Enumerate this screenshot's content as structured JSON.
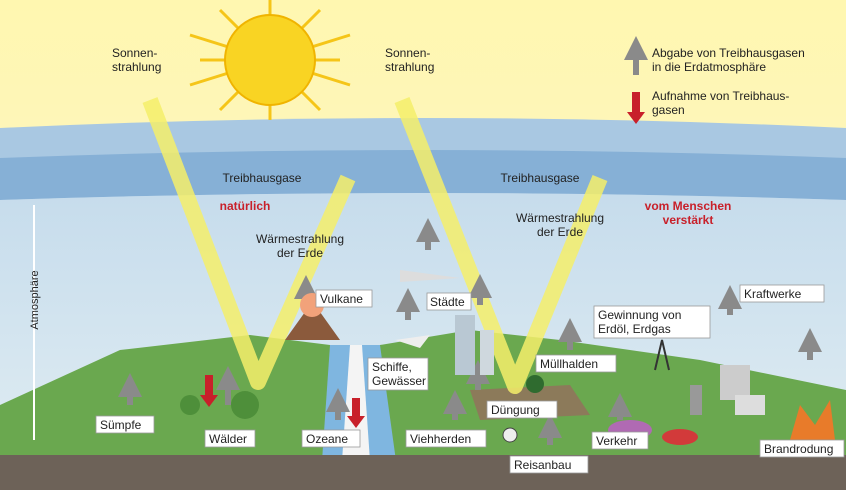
{
  "sun_left": [
    "Sonnen-",
    "strahlung"
  ],
  "sun_right": [
    "Sonnen-",
    "strahlung"
  ],
  "legend": {
    "emission": [
      "Abgabe von Treibhausgasen",
      "in die Erdatmosphäre"
    ],
    "absorption": [
      "Aufnahme von Treibhaus-",
      "gasen"
    ]
  },
  "greenhouse_left": "Treibhausgase",
  "greenhouse_right": "Treibhausgase",
  "natural": "natürlich",
  "human": [
    "vom Menschen",
    "verstärkt"
  ],
  "heat_left": [
    "Wärmestrahlung",
    "der Erde"
  ],
  "heat_right": [
    "Wärmestrahlung",
    "der Erde"
  ],
  "atmosphere": "Atmosphäre",
  "sources": {
    "volcanoes": "Vulkane",
    "cities": "Städte",
    "ships": [
      "Schiffe,",
      "Gewässer"
    ],
    "swamps": "Sümpfe",
    "forests": "Wälder",
    "oceans": "Ozeane",
    "livestock": "Viehherden",
    "fertilizer": "Düngung",
    "rice": "Reisanbau",
    "traffic": "Verkehr",
    "landfills": "Müllhalden",
    "extraction": [
      "Gewinnung von",
      "Erdöl, Erdgas"
    ],
    "power_plants": "Kraftwerke",
    "slash_burn": "Brandrodung"
  }
}
